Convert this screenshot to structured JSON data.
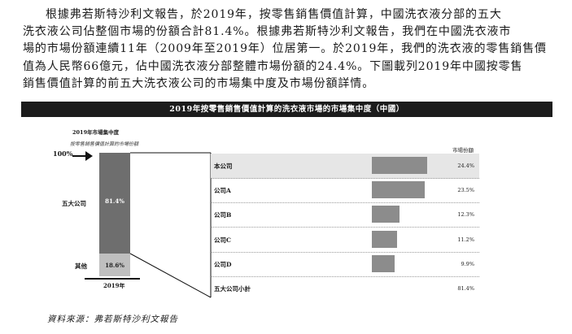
{
  "paragraph": [
    "根據弗若斯特沙利文報告，於2019年，按零售銷售價值計算，中國洗衣液分部的五大",
    "洗衣液公司佔整個市場的份額合計81.4%。根據弗若斯特沙利文報告，我們在中國洗衣液市",
    "場的市場份額連續11年（2009年至2019年）位居第一。於2019年，我們的洗衣液的零售銷售價",
    "值為人民幣66億元，佔中國洗衣液分部整體市場份額的24.4%。下圖載列2019年中國按零售",
    "銷售價值計算的前五大洗衣液公司的市場集中度及市場份額詳情。"
  ],
  "banner_title": "2019年按零售銷售價值計算的洗衣液市場的市場集中度（中國）",
  "chart_data": [
    {
      "type": "bar",
      "title": "2019年市場集中度",
      "subtitle": "按零售銷售價值計算的市場份額",
      "scale_label": "100%",
      "categories": [
        "2019年"
      ],
      "series": [
        {
          "name": "五大公司",
          "values": [
            81.4
          ],
          "label": "81.4%"
        },
        {
          "name": "其他",
          "values": [
            18.6
          ],
          "label": "18.6%"
        }
      ],
      "ylim": [
        0,
        100
      ]
    },
    {
      "type": "bar",
      "title": "",
      "value_header": "市場份額",
      "categories": [
        "本公司",
        "公司A",
        "公司B",
        "公司C",
        "公司D",
        "五大公司小計"
      ],
      "values": [
        24.4,
        23.5,
        12.3,
        11.2,
        9.9,
        81.4
      ],
      "labels": [
        "24.4%",
        "23.5%",
        "12.3%",
        "11.2%",
        "9.9%",
        "81.4%"
      ],
      "bars_drawn": [
        true,
        true,
        true,
        true,
        true,
        false
      ],
      "bar_scale_max": 24.4,
      "highlighted_row": "本公司"
    }
  ],
  "source_text": "資料來源：弗若斯特沙利文報告",
  "colors": {
    "banner_bg": "#1c1c1c",
    "top5_bar": "#6e6e6e",
    "other_bar": "#bfbfbf",
    "share_bar": "#8c8c8c",
    "highlight_row": "#e6e6e6"
  }
}
